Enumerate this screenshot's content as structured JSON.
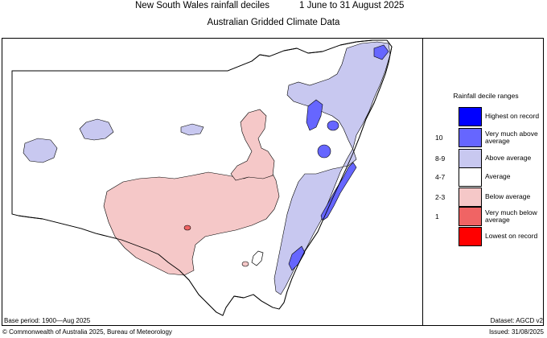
{
  "header": {
    "title": "New South Wales rainfall deciles",
    "period": "1 June to 31 August 2025",
    "subtitle": "Australian Gridded Climate Data"
  },
  "legend": {
    "title": "Rainfall decile ranges",
    "items": [
      {
        "code": "",
        "label": "Highest on record",
        "color": "#0000ff"
      },
      {
        "code": "10",
        "label": "Very much above average",
        "color": "#6666ff"
      },
      {
        "code": "8-9",
        "label": "Above average",
        "color": "#c8c8f0"
      },
      {
        "code": "4-7",
        "label": "Average",
        "color": "#ffffff"
      },
      {
        "code": "2-3",
        "label": "Below average",
        "color": "#f5c8c8"
      },
      {
        "code": "1",
        "label": "Very much below average",
        "color": "#f06464"
      },
      {
        "code": "",
        "label": "Lowest on record",
        "color": "#ff0000"
      }
    ]
  },
  "footer": {
    "base_period": "Base period: 1900—Aug 2025",
    "dataset": "Dataset: AGCD v2",
    "copyright": "© Commonwealth of Australia 2025, Bureau of Meteorology",
    "issued": "Issued: 31/08/2025"
  },
  "colors": {
    "above": "#c8c8f0",
    "very_much_above": "#6666ff",
    "highest": "#0000ff",
    "below": "#f5c8c8",
    "very_much_below": "#f06464",
    "outline": "#000000"
  }
}
